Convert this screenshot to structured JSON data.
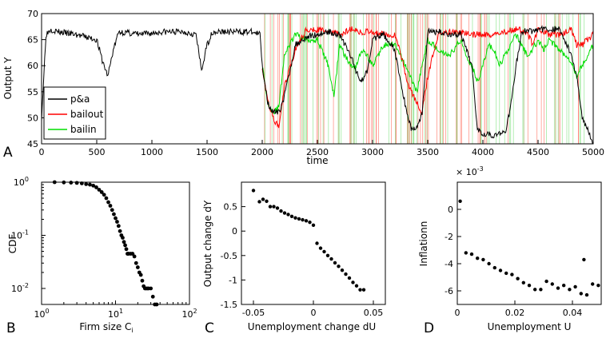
{
  "chart_data": [
    {
      "panel": "A",
      "type": "line",
      "xlabel": "time",
      "ylabel": "Output Y",
      "xlim": [
        0,
        5000
      ],
      "ylim": [
        45,
        70
      ],
      "xticks": [
        "0",
        "500",
        "1000",
        "1500",
        "2000",
        "2500",
        "3000",
        "3500",
        "4000",
        "4500",
        "5000"
      ],
      "yticks": [
        "45",
        "50",
        "55",
        "60",
        "65",
        "70"
      ],
      "legend": [
        "p&a",
        "bailout",
        "bailin"
      ],
      "legend_position": "lower-left",
      "colors": {
        "p&a": "#000000",
        "bailout": "#ff0000",
        "bailin": "#00dd00"
      },
      "series": [
        {
          "name": "p&a",
          "x": [
            0,
            40,
            80,
            150,
            300,
            500,
            550,
            600,
            650,
            700,
            900,
            1100,
            1300,
            1400,
            1450,
            1500,
            1550,
            1700,
            1900,
            1980,
            2000,
            2050,
            2100,
            2150,
            2200,
            2300,
            2400,
            2500,
            2600,
            2700,
            2800,
            2850,
            2900,
            2950,
            3000,
            3100,
            3200,
            3300,
            3350,
            3400,
            3450,
            3500,
            3600,
            3700,
            3800,
            3900,
            3950,
            4000,
            4050,
            4100,
            4150,
            4200,
            4250,
            4300,
            4350,
            4400,
            4450,
            4500,
            4600,
            4700,
            4800,
            4850,
            4900,
            4950,
            5000
          ],
          "y": [
            50,
            66,
            67,
            66.5,
            66,
            65,
            61,
            58,
            63,
            66.5,
            66,
            66.5,
            66.5,
            66,
            59,
            64,
            66.5,
            66.5,
            66.5,
            66,
            60,
            53,
            51,
            51,
            54,
            64,
            65.5,
            66,
            66.5,
            66,
            62,
            59,
            57,
            59,
            65,
            66,
            63,
            52,
            48,
            48,
            51,
            66.5,
            66.5,
            66,
            66,
            60,
            48,
            47,
            47,
            46.5,
            47,
            47,
            52,
            60,
            66,
            67,
            66.5,
            67,
            67,
            67,
            62,
            58,
            50,
            48,
            45
          ]
        },
        {
          "name": "bailout",
          "x": [
            2000,
            2050,
            2100,
            2150,
            2200,
            2300,
            2400,
            2500,
            2600,
            2700,
            2800,
            2900,
            3000,
            3100,
            3200,
            3250,
            3300,
            3350,
            3400,
            3450,
            3500,
            3600,
            3700,
            3800,
            3900,
            4000,
            4100,
            4200,
            4300,
            4400,
            4450,
            4500,
            4600,
            4700,
            4800,
            4850,
            4900,
            4950,
            5000
          ],
          "y": [
            60,
            53,
            50,
            48,
            56,
            63,
            67,
            67,
            66.5,
            66,
            67,
            66.5,
            66.5,
            66,
            66,
            63,
            58,
            55,
            53,
            51,
            58,
            66.5,
            66.5,
            66.5,
            66,
            66,
            66,
            66.5,
            67,
            66.5,
            64,
            67,
            66,
            66,
            67,
            64,
            64,
            65,
            66
          ]
        },
        {
          "name": "bailin",
          "x": [
            2000,
            2050,
            2100,
            2150,
            2200,
            2300,
            2400,
            2500,
            2600,
            2650,
            2700,
            2750,
            2800,
            2850,
            2900,
            2950,
            3000,
            3100,
            3200,
            3300,
            3400,
            3500,
            3600,
            3700,
            3800,
            3850,
            3900,
            3950,
            4000,
            4050,
            4100,
            4150,
            4200,
            4300,
            4400,
            4450,
            4500,
            4550,
            4600,
            4700,
            4800,
            4850,
            4900,
            4950,
            5000
          ],
          "y": [
            60,
            53,
            51,
            52,
            62,
            66,
            65,
            65,
            60,
            54,
            64,
            62,
            60,
            60,
            63,
            62,
            60,
            64,
            64,
            60,
            55,
            65,
            63,
            62,
            65,
            62,
            60,
            57,
            60,
            64,
            63,
            60,
            62,
            66,
            62,
            63,
            65,
            63,
            65,
            63,
            61,
            58,
            60,
            62,
            64
          ]
        }
      ]
    },
    {
      "panel": "B",
      "type": "scatter",
      "xlabel": "Firm size C",
      "xlabel_subscript": "i",
      "ylabel": "CDF",
      "xscale": "log",
      "yscale": "log",
      "xlim": [
        1,
        100
      ],
      "ylim": [
        0.005,
        1
      ],
      "xtick_labels": [
        {
          "base": "10",
          "exp": "0"
        },
        {
          "base": "10",
          "exp": "1"
        },
        {
          "base": "10",
          "exp": "2"
        }
      ],
      "ytick_labels": [
        {
          "base": "10",
          "exp": "0"
        },
        {
          "base": "10",
          "exp": "-1"
        },
        {
          "base": "10",
          "exp": "-2"
        }
      ],
      "points": [
        [
          1.5,
          1
        ],
        [
          2,
          0.99
        ],
        [
          2.5,
          0.98
        ],
        [
          3,
          0.97
        ],
        [
          3.5,
          0.95
        ],
        [
          4,
          0.92
        ],
        [
          4.5,
          0.9
        ],
        [
          5,
          0.86
        ],
        [
          5.5,
          0.8
        ],
        [
          6,
          0.72
        ],
        [
          6.5,
          0.65
        ],
        [
          7,
          0.58
        ],
        [
          7.5,
          0.5
        ],
        [
          8,
          0.42
        ],
        [
          8.5,
          0.36
        ],
        [
          9,
          0.3
        ],
        [
          9.5,
          0.25
        ],
        [
          10,
          0.21
        ],
        [
          10.5,
          0.18
        ],
        [
          11,
          0.15
        ],
        [
          11.5,
          0.12
        ],
        [
          12,
          0.1
        ],
        [
          12.5,
          0.09
        ],
        [
          13,
          0.075
        ],
        [
          13.5,
          0.065
        ],
        [
          14,
          0.055
        ],
        [
          14.5,
          0.045
        ],
        [
          15,
          0.045
        ],
        [
          16,
          0.045
        ],
        [
          17,
          0.045
        ],
        [
          18,
          0.04
        ],
        [
          19,
          0.03
        ],
        [
          20,
          0.025
        ],
        [
          21,
          0.02
        ],
        [
          22,
          0.018
        ],
        [
          23,
          0.014
        ],
        [
          24,
          0.011
        ],
        [
          25,
          0.01
        ],
        [
          26,
          0.01
        ],
        [
          27,
          0.01
        ],
        [
          28,
          0.01
        ],
        [
          30,
          0.01
        ],
        [
          32,
          0.007
        ],
        [
          34,
          0.005
        ],
        [
          36,
          0.005
        ]
      ]
    },
    {
      "panel": "C",
      "type": "scatter",
      "xlabel": "Unemployment change dU",
      "ylabel": "Output change dY",
      "xlim": [
        -0.06,
        0.06
      ],
      "ylim": [
        -1.5,
        1
      ],
      "xticks": [
        "-0.05",
        "0",
        "0.05"
      ],
      "yticks": [
        "-1.5",
        "-1",
        "-0.5",
        "0",
        "0.5"
      ],
      "points": [
        [
          -0.05,
          0.83
        ],
        [
          -0.045,
          0.6
        ],
        [
          -0.042,
          0.65
        ],
        [
          -0.039,
          0.61
        ],
        [
          -0.036,
          0.5
        ],
        [
          -0.033,
          0.5
        ],
        [
          -0.03,
          0.47
        ],
        [
          -0.027,
          0.41
        ],
        [
          -0.024,
          0.37
        ],
        [
          -0.021,
          0.34
        ],
        [
          -0.018,
          0.3
        ],
        [
          -0.015,
          0.27
        ],
        [
          -0.012,
          0.25
        ],
        [
          -0.009,
          0.23
        ],
        [
          -0.006,
          0.21
        ],
        [
          -0.003,
          0.18
        ],
        [
          0,
          0.12
        ],
        [
          0.003,
          -0.25
        ],
        [
          0.006,
          -0.35
        ],
        [
          0.009,
          -0.42
        ],
        [
          0.012,
          -0.5
        ],
        [
          0.015,
          -0.57
        ],
        [
          0.018,
          -0.65
        ],
        [
          0.021,
          -0.72
        ],
        [
          0.024,
          -0.8
        ],
        [
          0.027,
          -0.88
        ],
        [
          0.03,
          -0.96
        ],
        [
          0.033,
          -1.05
        ],
        [
          0.036,
          -1.12
        ],
        [
          0.039,
          -1.2
        ],
        [
          0.042,
          -1.2
        ]
      ]
    },
    {
      "panel": "D",
      "type": "scatter",
      "xlabel": "Unemployment U",
      "ylabel": "Inflationn",
      "exponent_label": "× 10",
      "exponent_power": "-3",
      "xlim": [
        0,
        0.05
      ],
      "ylim": [
        -7,
        2
      ],
      "xticks": [
        "0",
        "0.02",
        "0.04"
      ],
      "yticks": [
        "-6",
        "-4",
        "-2",
        "0"
      ],
      "points": [
        [
          0.001,
          0.6
        ],
        [
          0.003,
          -3.2
        ],
        [
          0.005,
          -3.3
        ],
        [
          0.007,
          -3.6
        ],
        [
          0.009,
          -3.7
        ],
        [
          0.011,
          -4.0
        ],
        [
          0.013,
          -4.3
        ],
        [
          0.015,
          -4.5
        ],
        [
          0.017,
          -4.7
        ],
        [
          0.019,
          -4.8
        ],
        [
          0.021,
          -5.1
        ],
        [
          0.023,
          -5.4
        ],
        [
          0.025,
          -5.6
        ],
        [
          0.027,
          -5.9
        ],
        [
          0.029,
          -5.9
        ],
        [
          0.031,
          -5.3
        ],
        [
          0.033,
          -5.5
        ],
        [
          0.035,
          -5.8
        ],
        [
          0.037,
          -5.6
        ],
        [
          0.039,
          -5.9
        ],
        [
          0.041,
          -5.7
        ],
        [
          0.043,
          -6.2
        ],
        [
          0.044,
          -3.7
        ],
        [
          0.045,
          -6.3
        ],
        [
          0.047,
          -5.5
        ],
        [
          0.049,
          -5.6
        ]
      ]
    }
  ],
  "panel_letters": {
    "a": "A",
    "b": "B",
    "c": "C",
    "d": "D"
  }
}
